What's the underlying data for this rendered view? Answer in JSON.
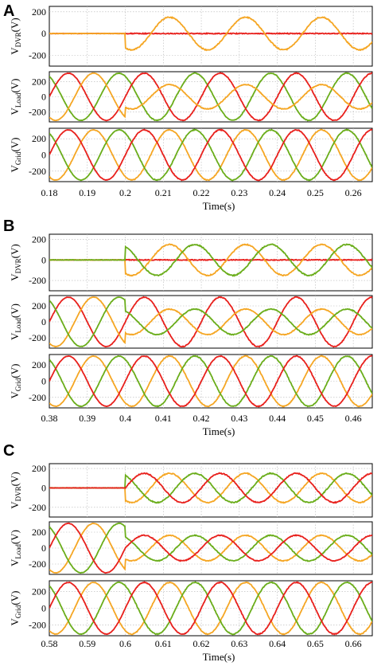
{
  "colors": {
    "phase_a": "#e8201c",
    "phase_b": "#f5a623",
    "phase_c": "#6aad1a"
  },
  "chart_data": [
    {
      "type": "line",
      "panel_label": "A",
      "xlabel": "Time(s)",
      "xlim": [
        0.18,
        0.265
      ],
      "xticks": [
        "0.18",
        "0.19",
        "0.2",
        "0.21",
        "0.22",
        "0.23",
        "0.24",
        "0.25",
        "0.26"
      ],
      "event_time": 0.2,
      "frequency_hz": 50,
      "subplots": [
        {
          "ylabel_main": "V",
          "ylabel_sub": "DVR",
          "ylabel_unit": "(V)",
          "ylim": [
            -300,
            250
          ],
          "yticks": [
            "200",
            "0",
            "-200"
          ],
          "series": [
            {
              "color": "#e8201c",
              "pre_amp": 0,
              "post_amp": 0,
              "phase_deg": 0
            },
            {
              "color": "#f5a623",
              "pre_amp": 0,
              "post_amp": 150,
              "phase_deg": -120
            }
          ]
        },
        {
          "ylabel_main": "V",
          "ylabel_sub": "Load",
          "ylabel_unit": "(V)",
          "ylim": [
            -330,
            330
          ],
          "yticks": [
            "200",
            "0",
            "-200"
          ],
          "series": [
            {
              "color": "#6aad1a",
              "pre_amp": 310,
              "post_amp": 310,
              "phase_deg": 120
            },
            {
              "color": "#e8201c",
              "pre_amp": 310,
              "post_amp": 310,
              "phase_deg": 0
            },
            {
              "color": "#f5a623",
              "pre_amp": 310,
              "post_amp": 160,
              "phase_deg": -120
            }
          ]
        },
        {
          "ylabel_main": "V",
          "ylabel_sub": "Grid",
          "ylabel_unit": "(V)",
          "ylim": [
            -330,
            330
          ],
          "yticks": [
            "200",
            "0",
            "-200"
          ],
          "series": [
            {
              "color": "#f5a623",
              "pre_amp": 310,
              "post_amp": 310,
              "phase_deg": -120
            },
            {
              "color": "#6aad1a",
              "pre_amp": 310,
              "post_amp": 310,
              "phase_deg": 120
            },
            {
              "color": "#e8201c",
              "pre_amp": 310,
              "post_amp": 310,
              "phase_deg": 0
            }
          ]
        }
      ]
    },
    {
      "type": "line",
      "panel_label": "B",
      "xlabel": "Time(s)",
      "xlim": [
        0.38,
        0.465
      ],
      "xticks": [
        "0.38",
        "0.39",
        "0.4",
        "0.41",
        "0.42",
        "0.43",
        "0.44",
        "0.45",
        "0.46"
      ],
      "event_time": 0.4,
      "frequency_hz": 50,
      "subplots": [
        {
          "ylabel_main": "V",
          "ylabel_sub": "DVR",
          "ylabel_unit": "(V)",
          "ylim": [
            -300,
            250
          ],
          "yticks": [
            "200",
            "0",
            "-200"
          ],
          "series": [
            {
              "color": "#e8201c",
              "pre_amp": 0,
              "post_amp": 0,
              "phase_deg": 0
            },
            {
              "color": "#f5a623",
              "pre_amp": 0,
              "post_amp": 150,
              "phase_deg": -120
            },
            {
              "color": "#6aad1a",
              "pre_amp": 0,
              "post_amp": 150,
              "phase_deg": 120
            }
          ]
        },
        {
          "ylabel_main": "V",
          "ylabel_sub": "Load",
          "ylabel_unit": "(V)",
          "ylim": [
            -330,
            330
          ],
          "yticks": [
            "200",
            "0",
            "-200"
          ],
          "series": [
            {
              "color": "#e8201c",
              "pre_amp": 310,
              "post_amp": 310,
              "phase_deg": 0
            },
            {
              "color": "#f5a623",
              "pre_amp": 310,
              "post_amp": 160,
              "phase_deg": -120
            },
            {
              "color": "#6aad1a",
              "pre_amp": 310,
              "post_amp": 160,
              "phase_deg": 120
            }
          ]
        },
        {
          "ylabel_main": "V",
          "ylabel_sub": "Grid",
          "ylabel_unit": "(V)",
          "ylim": [
            -330,
            330
          ],
          "yticks": [
            "200",
            "0",
            "-200"
          ],
          "series": [
            {
              "color": "#f5a623",
              "pre_amp": 310,
              "post_amp": 310,
              "phase_deg": -120
            },
            {
              "color": "#6aad1a",
              "pre_amp": 310,
              "post_amp": 310,
              "phase_deg": 120
            },
            {
              "color": "#e8201c",
              "pre_amp": 310,
              "post_amp": 310,
              "phase_deg": 0
            }
          ]
        }
      ]
    },
    {
      "type": "line",
      "panel_label": "C",
      "xlabel": "Time(s)",
      "xlim": [
        0.58,
        0.665
      ],
      "xticks": [
        "0.58",
        "0.59",
        "0.6",
        "0.61",
        "0.62",
        "0.63",
        "0.64",
        "0.65",
        "0.66"
      ],
      "event_time": 0.6,
      "frequency_hz": 50,
      "subplots": [
        {
          "ylabel_main": "V",
          "ylabel_sub": "DVR",
          "ylabel_unit": "(V)",
          "ylim": [
            -300,
            250
          ],
          "yticks": [
            "200",
            "0",
            "-200"
          ],
          "series": [
            {
              "color": "#f5a623",
              "pre_amp": 0,
              "post_amp": 150,
              "phase_deg": -120
            },
            {
              "color": "#6aad1a",
              "pre_amp": 0,
              "post_amp": 150,
              "phase_deg": 120
            },
            {
              "color": "#e8201c",
              "pre_amp": 0,
              "post_amp": 150,
              "phase_deg": 0
            }
          ]
        },
        {
          "ylabel_main": "V",
          "ylabel_sub": "Load",
          "ylabel_unit": "(V)",
          "ylim": [
            -330,
            330
          ],
          "yticks": [
            "200",
            "0",
            "-200"
          ],
          "series": [
            {
              "color": "#f5a623",
              "pre_amp": 310,
              "post_amp": 160,
              "phase_deg": -120
            },
            {
              "color": "#6aad1a",
              "pre_amp": 310,
              "post_amp": 160,
              "phase_deg": 120
            },
            {
              "color": "#e8201c",
              "pre_amp": 310,
              "post_amp": 160,
              "phase_deg": 0
            }
          ]
        },
        {
          "ylabel_main": "V",
          "ylabel_sub": "Grid",
          "ylabel_unit": "(V)",
          "ylim": [
            -330,
            330
          ],
          "yticks": [
            "200",
            "0",
            "-200"
          ],
          "series": [
            {
              "color": "#f5a623",
              "pre_amp": 310,
              "post_amp": 310,
              "phase_deg": -120
            },
            {
              "color": "#6aad1a",
              "pre_amp": 310,
              "post_amp": 310,
              "phase_deg": 120
            },
            {
              "color": "#e8201c",
              "pre_amp": 310,
              "post_amp": 310,
              "phase_deg": 0
            }
          ]
        }
      ]
    }
  ]
}
